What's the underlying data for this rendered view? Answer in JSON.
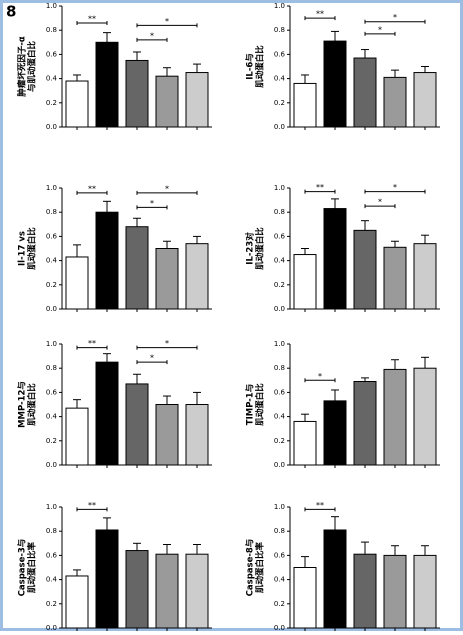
{
  "panel_label": "8",
  "chart_data": [
    {
      "type": "bar",
      "ylabel": [
        "肿瘤坏死因子-α",
        "与肌动蛋白比"
      ],
      "categories": [
        null,
        null,
        null,
        null,
        null
      ],
      "values": [
        0.38,
        0.7,
        0.55,
        0.42,
        0.45
      ],
      "errors": [
        0.05,
        0.08,
        0.07,
        0.07,
        0.07
      ],
      "colors": [
        "#ffffff",
        "#000000",
        "#666666",
        "#9a9a9a",
        "#cccccc"
      ],
      "ylim": [
        0,
        1
      ],
      "yticks": [
        {
          "value": 0,
          "label": "0.0"
        },
        0.2,
        0.4,
        0.6,
        0.8,
        {
          "value": 1,
          "label": "1.0"
        }
      ],
      "significance": [
        {
          "label": "**",
          "groups": [
            0,
            1
          ],
          "level": 0.86
        },
        {
          "label": "*",
          "groups": [
            2,
            4
          ],
          "level": 0.84
        },
        {
          "label": "*",
          "groups": [
            2,
            3
          ],
          "level": 0.72
        }
      ]
    },
    {
      "type": "bar",
      "ylabel": [
        "IL-6与",
        "肌动蛋白比"
      ],
      "categories": [
        null,
        null,
        null,
        null,
        null
      ],
      "values": [
        0.36,
        0.71,
        0.57,
        0.41,
        0.45
      ],
      "errors": [
        0.07,
        0.08,
        0.07,
        0.06,
        0.05
      ],
      "colors": [
        "#ffffff",
        "#000000",
        "#666666",
        "#9a9a9a",
        "#cccccc"
      ],
      "ylim": [
        0,
        1
      ],
      "yticks": [
        {
          "value": 0,
          "label": "0.0"
        },
        0.2,
        0.4,
        0.6,
        0.8,
        {
          "value": 1,
          "label": "1.0"
        }
      ],
      "significance": [
        {
          "label": "**",
          "groups": [
            0,
            1
          ],
          "level": 0.9
        },
        {
          "label": "*",
          "groups": [
            2,
            4
          ],
          "level": 0.87
        },
        {
          "label": "*",
          "groups": [
            2,
            3
          ],
          "level": 0.77
        }
      ]
    },
    {
      "type": "bar",
      "ylabel": [
        "Il-17 vs",
        "肌动蛋白比"
      ],
      "categories": [
        null,
        null,
        null,
        null,
        null
      ],
      "values": [
        0.43,
        0.8,
        0.68,
        0.5,
        0.54
      ],
      "errors": [
        0.1,
        0.09,
        0.07,
        0.06,
        0.06
      ],
      "colors": [
        "#ffffff",
        "#000000",
        "#666666",
        "#9a9a9a",
        "#cccccc"
      ],
      "ylim": [
        0,
        1
      ],
      "yticks": [
        {
          "value": 0,
          "label": "0.0"
        },
        0.2,
        0.4,
        0.6,
        0.8,
        {
          "value": 1,
          "label": "1.0"
        }
      ],
      "significance": [
        {
          "label": "**",
          "groups": [
            0,
            1
          ],
          "level": 0.96
        },
        {
          "label": "*",
          "groups": [
            2,
            4
          ],
          "level": 0.96
        },
        {
          "label": "*",
          "groups": [
            2,
            3
          ],
          "level": 0.84
        }
      ]
    },
    {
      "type": "bar",
      "ylabel": [
        "IL-23对",
        "肌动蛋白比"
      ],
      "categories": [
        null,
        null,
        null,
        null,
        null
      ],
      "values": [
        0.45,
        0.83,
        0.65,
        0.51,
        0.54
      ],
      "errors": [
        0.05,
        0.08,
        0.08,
        0.05,
        0.07
      ],
      "colors": [
        "#ffffff",
        "#000000",
        "#666666",
        "#9a9a9a",
        "#cccccc"
      ],
      "ylim": [
        0,
        1
      ],
      "yticks": [
        {
          "value": 0,
          "label": "0.0"
        },
        0.2,
        0.4,
        0.6,
        0.8,
        {
          "value": 1,
          "label": "1.0"
        }
      ],
      "significance": [
        {
          "label": "**",
          "groups": [
            0,
            1
          ],
          "level": 0.97
        },
        {
          "label": "*",
          "groups": [
            2,
            4
          ],
          "level": 0.97
        },
        {
          "label": "*",
          "groups": [
            2,
            3
          ],
          "level": 0.85
        }
      ]
    },
    {
      "type": "bar",
      "ylabel": [
        "MMP-12与",
        "肌动蛋白比"
      ],
      "categories": [
        null,
        null,
        null,
        null,
        null
      ],
      "values": [
        0.47,
        0.85,
        0.67,
        0.5,
        0.5
      ],
      "errors": [
        0.07,
        0.07,
        0.08,
        0.07,
        0.1
      ],
      "colors": [
        "#ffffff",
        "#000000",
        "#666666",
        "#9a9a9a",
        "#cccccc"
      ],
      "ylim": [
        0,
        1
      ],
      "yticks": [
        {
          "value": 0,
          "label": "0.0"
        },
        0.2,
        0.4,
        0.6,
        0.8,
        {
          "value": 1,
          "label": "1.0"
        }
      ],
      "significance": [
        {
          "label": "**",
          "groups": [
            0,
            1
          ],
          "level": 0.97
        },
        {
          "label": "*",
          "groups": [
            2,
            4
          ],
          "level": 0.97
        },
        {
          "label": "*",
          "groups": [
            2,
            3
          ],
          "level": 0.85
        }
      ]
    },
    {
      "type": "bar",
      "ylabel": [
        "TIMP-1与",
        "肌动蛋白比"
      ],
      "categories": [
        null,
        null,
        null,
        null,
        null
      ],
      "values": [
        0.36,
        0.53,
        0.69,
        0.79,
        0.8
      ],
      "errors": [
        0.06,
        0.09,
        0.03,
        0.08,
        0.09
      ],
      "colors": [
        "#ffffff",
        "#000000",
        "#666666",
        "#9a9a9a",
        "#cccccc"
      ],
      "ylim": [
        0,
        1
      ],
      "yticks": [
        {
          "value": 0,
          "label": "0.0"
        },
        0.2,
        0.4,
        0.6,
        0.8,
        {
          "value": 1,
          "label": "1.0"
        }
      ],
      "significance": [
        {
          "label": "*",
          "groups": [
            0,
            1
          ],
          "level": 0.7
        }
      ]
    },
    {
      "type": "bar",
      "ylabel": [
        "Caspase-3与",
        "肌动蛋白比率"
      ],
      "categories": [
        null,
        null,
        null,
        null,
        null
      ],
      "values": [
        0.43,
        0.81,
        0.64,
        0.61,
        0.61
      ],
      "errors": [
        0.05,
        0.1,
        0.06,
        0.08,
        0.08
      ],
      "colors": [
        "#ffffff",
        "#000000",
        "#666666",
        "#9a9a9a",
        "#cccccc"
      ],
      "ylim": [
        0,
        1
      ],
      "yticks": [
        {
          "value": 0,
          "label": "0.0"
        },
        0.2,
        0.4,
        0.6,
        0.8,
        {
          "value": 1,
          "label": "1.0"
        }
      ],
      "significance": [
        {
          "label": "**",
          "groups": [
            0,
            1
          ],
          "level": 0.98
        }
      ]
    },
    {
      "type": "bar",
      "ylabel": [
        "Caspase-8与",
        "肌动蛋白比率"
      ],
      "categories": [
        null,
        null,
        null,
        null,
        null
      ],
      "values": [
        0.5,
        0.81,
        0.61,
        0.6,
        0.6
      ],
      "errors": [
        0.09,
        0.11,
        0.1,
        0.08,
        0.08
      ],
      "colors": [
        "#ffffff",
        "#000000",
        "#666666",
        "#9a9a9a",
        "#cccccc"
      ],
      "ylim": [
        0,
        1
      ],
      "yticks": [
        {
          "value": 0,
          "label": "0.0"
        },
        0.2,
        0.4,
        0.6,
        0.8,
        {
          "value": 1,
          "label": "1.0"
        }
      ],
      "significance": [
        {
          "label": "**",
          "groups": [
            0,
            1
          ],
          "level": 0.98
        }
      ]
    }
  ]
}
